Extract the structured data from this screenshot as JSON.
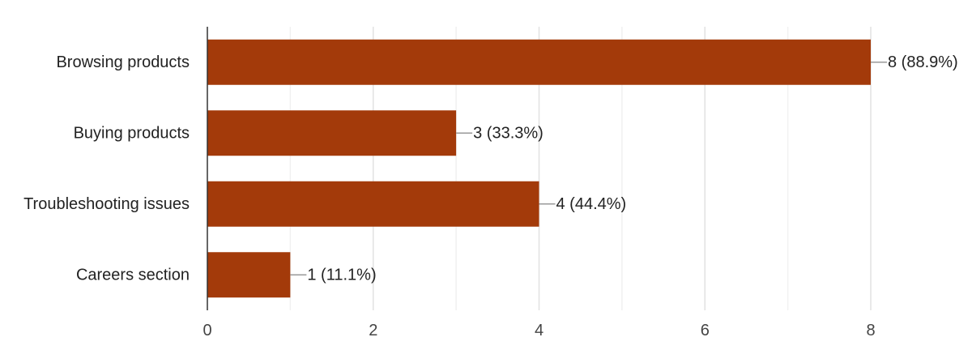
{
  "chart_data": {
    "type": "bar",
    "orientation": "horizontal",
    "categories": [
      "Browsing products",
      "Buying products",
      "Troubleshooting issues",
      "Careers section"
    ],
    "values": [
      8,
      3,
      4,
      1
    ],
    "data_labels": [
      "8 (88.9%)",
      "3 (33.3%)",
      "4 (44.4%)",
      "1 (11.1%)"
    ],
    "x_ticks": [
      0,
      2,
      4,
      6,
      8
    ],
    "xlim": [
      0,
      8
    ],
    "grid": true,
    "legend": "none",
    "bar_color": "#a33a0a",
    "title": "",
    "xlabel": "",
    "ylabel": ""
  }
}
